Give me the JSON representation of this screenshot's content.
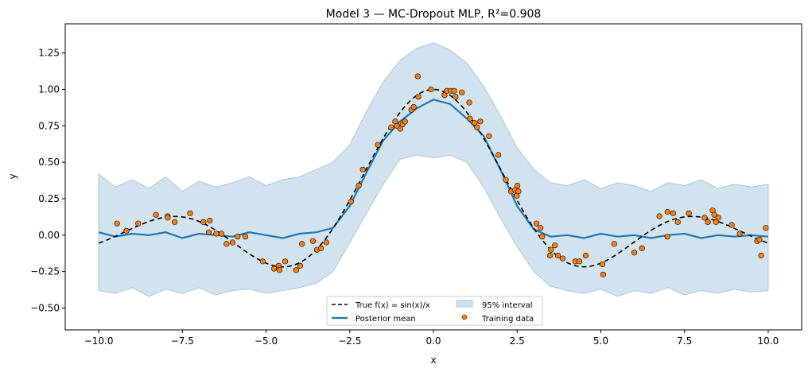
{
  "chart_data": {
    "type": "line",
    "title": "Model 3 — MC-Dropout MLP, R²=0.908",
    "xlabel": "x",
    "ylabel": "y",
    "xlim": [
      -11,
      11
    ],
    "ylim": [
      -0.65,
      1.45
    ],
    "xticks": [
      -10,
      -7.5,
      -5,
      -2.5,
      0,
      2.5,
      5,
      7.5,
      10
    ],
    "xtick_labels": [
      "−10.0",
      "−7.5",
      "−5.0",
      "−2.5",
      "0.0",
      "2.5",
      "5.0",
      "7.5",
      "10.0"
    ],
    "yticks": [
      -0.5,
      -0.25,
      0,
      0.25,
      0.5,
      0.75,
      1.0,
      1.25
    ],
    "ytick_labels": [
      "−0.50",
      "−0.25",
      "0.00",
      "0.25",
      "0.50",
      "0.75",
      "1.00",
      "1.25"
    ],
    "grid": false,
    "legend_placement": "lower-center",
    "legend": {
      "true_fn": "True f(x) = sin(x)/x",
      "mean": "Posterior mean",
      "interval": "95% interval",
      "train": "Training data"
    },
    "colors": {
      "mean": "#1f77b4",
      "band": "#a6c8e2",
      "true_fn": "#000000",
      "points": "#ff7f0e"
    },
    "true_function": "sin(x)/x",
    "posterior": {
      "x": [
        -10,
        -9.5,
        -9,
        -8.5,
        -8,
        -7.5,
        -7,
        -6.5,
        -6,
        -5.5,
        -5,
        -4.5,
        -4,
        -3.5,
        -3,
        -2.5,
        -2,
        -1.5,
        -1,
        -0.5,
        0,
        0.5,
        1,
        1.5,
        2,
        2.5,
        3,
        3.5,
        4,
        4.5,
        5,
        5.5,
        6,
        6.5,
        7,
        7.5,
        8,
        8.5,
        9,
        9.5,
        10
      ],
      "mean": [
        0.02,
        -0.01,
        0.01,
        0.0,
        0.02,
        -0.02,
        0.01,
        0.0,
        -0.01,
        0.02,
        0.0,
        -0.02,
        0.01,
        0.02,
        0.05,
        0.2,
        0.43,
        0.65,
        0.78,
        0.87,
        0.93,
        0.9,
        0.8,
        0.68,
        0.45,
        0.2,
        0.04,
        -0.01,
        0.0,
        -0.02,
        0.01,
        -0.01,
        0.0,
        -0.02,
        0.0,
        0.01,
        -0.02,
        0.0,
        -0.01,
        0.0,
        -0.01
      ],
      "lower": [
        -0.38,
        -0.4,
        -0.36,
        -0.42,
        -0.37,
        -0.4,
        -0.36,
        -0.41,
        -0.38,
        -0.37,
        -0.4,
        -0.38,
        -0.36,
        -0.33,
        -0.25,
        -0.05,
        0.15,
        0.35,
        0.52,
        0.55,
        0.53,
        0.55,
        0.5,
        0.33,
        0.12,
        -0.08,
        -0.25,
        -0.35,
        -0.38,
        -0.4,
        -0.37,
        -0.42,
        -0.38,
        -0.4,
        -0.36,
        -0.41,
        -0.38,
        -0.4,
        -0.37,
        -0.39,
        -0.38
      ],
      "upper": [
        0.42,
        0.33,
        0.38,
        0.32,
        0.4,
        0.3,
        0.37,
        0.33,
        0.36,
        0.4,
        0.34,
        0.38,
        0.4,
        0.45,
        0.5,
        0.62,
        0.85,
        1.05,
        1.2,
        1.28,
        1.32,
        1.27,
        1.18,
        1.02,
        0.82,
        0.6,
        0.45,
        0.36,
        0.34,
        0.38,
        0.32,
        0.36,
        0.34,
        0.3,
        0.36,
        0.34,
        0.38,
        0.32,
        0.35,
        0.33,
        0.35
      ]
    },
    "training_data": {
      "x": [
        -9.45,
        -9.17,
        -8.82,
        -8.29,
        -7.94,
        -7.94,
        -7.73,
        -7.27,
        -6.87,
        -6.68,
        -6.71,
        -6.49,
        -6.33,
        -6.18,
        -6.0,
        -5.85,
        -5.62,
        -5.1,
        -4.76,
        -4.62,
        -4.6,
        -4.43,
        -4.1,
        -3.98,
        -3.93,
        -3.6,
        -3.48,
        -3.36,
        -3.2,
        -2.46,
        -2.23,
        -2.11,
        -1.66,
        -1.26,
        -1.14,
        -1.09,
        -0.99,
        -0.92,
        -0.85,
        -0.66,
        -0.59,
        -0.47,
        -0.45,
        -0.07,
        0.33,
        0.4,
        0.52,
        0.62,
        0.66,
        0.85,
        1.07,
        1.09,
        1.23,
        1.3,
        1.4,
        1.66,
        1.94,
        2.16,
        2.32,
        2.44,
        2.51,
        2.54,
        2.49,
        3.08,
        3.2,
        3.25,
        3.48,
        3.51,
        3.63,
        3.72,
        3.86,
        4.24,
        4.36,
        4.55,
        5.05,
        5.07,
        5.4,
        6.0,
        6.23,
        6.75,
        6.99,
        6.99,
        7.16,
        7.3,
        7.63,
        8.1,
        8.2,
        8.34,
        8.39,
        8.44,
        8.51,
        8.91,
        9.15,
        9.67,
        9.74,
        9.79,
        9.93
      ],
      "y": [
        0.08,
        0.03,
        0.08,
        0.14,
        0.13,
        0.12,
        0.09,
        0.15,
        0.09,
        0.1,
        0.02,
        0.01,
        0.01,
        -0.06,
        -0.05,
        -0.01,
        -0.01,
        -0.18,
        -0.23,
        -0.21,
        -0.24,
        -0.18,
        -0.24,
        -0.21,
        -0.06,
        -0.04,
        -0.1,
        -0.09,
        -0.05,
        0.23,
        0.34,
        0.45,
        0.62,
        0.74,
        0.78,
        0.75,
        0.73,
        0.76,
        0.78,
        0.86,
        0.88,
        1.09,
        0.95,
        1.0,
        0.96,
        0.99,
        0.99,
        0.99,
        0.95,
        0.98,
        0.91,
        0.8,
        0.77,
        0.74,
        0.78,
        0.68,
        0.55,
        0.38,
        0.3,
        0.31,
        0.34,
        0.3,
        0.27,
        0.08,
        0.05,
        -0.01,
        -0.14,
        -0.1,
        -0.07,
        -0.14,
        -0.16,
        -0.18,
        -0.18,
        -0.14,
        -0.2,
        -0.27,
        -0.06,
        -0.12,
        -0.09,
        0.13,
        0.16,
        -0.01,
        0.15,
        0.09,
        0.15,
        0.12,
        0.09,
        0.17,
        0.14,
        0.09,
        0.12,
        0.07,
        0.01,
        -0.04,
        -0.03,
        -0.14,
        0.05
      ]
    }
  }
}
